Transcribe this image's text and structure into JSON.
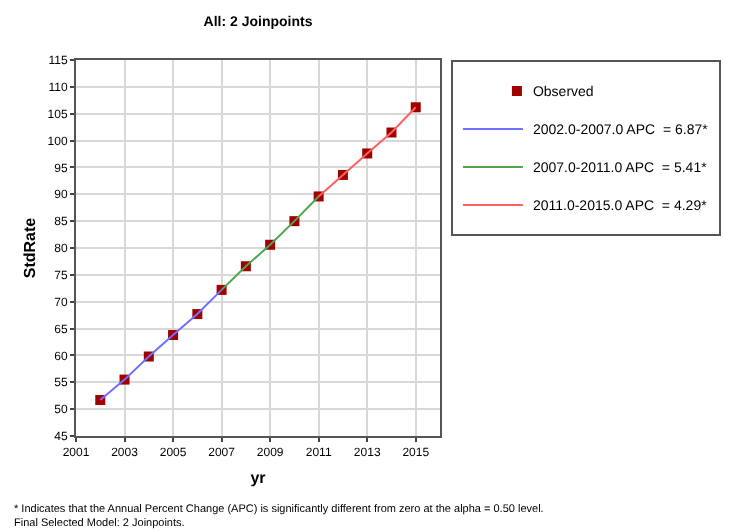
{
  "chart_data": {
    "type": "scatter",
    "title": "All: 2 Joinpoints",
    "xlabel": "yr",
    "ylabel": "StdRate",
    "x": [
      2002,
      2003,
      2004,
      2005,
      2006,
      2007,
      2008,
      2009,
      2010,
      2011,
      2012,
      2013,
      2014,
      2015
    ],
    "series": [
      {
        "name": "Observed",
        "type": "scatter",
        "marker": "square",
        "color": "#a00000",
        "values": [
          51.7,
          55.5,
          59.8,
          63.8,
          67.7,
          72.2,
          76.6,
          80.6,
          85.0,
          89.6,
          93.6,
          97.6,
          101.5,
          106.2
        ]
      },
      {
        "name": "2002.0-2007.0 APC  = 6.87*",
        "type": "line",
        "marker": "none",
        "line_style": "solid",
        "color": "#7070ff",
        "x": [
          2002,
          2003,
          2004,
          2005,
          2006,
          2007
        ],
        "values": [
          51.7,
          55.5,
          59.8,
          63.8,
          67.7,
          72.2
        ]
      },
      {
        "name": "2007.0-2011.0 APC  = 5.41*",
        "type": "line",
        "marker": "none",
        "line_style": "solid",
        "color": "#4da64d",
        "x": [
          2007,
          2008,
          2009,
          2010,
          2011
        ],
        "values": [
          72.2,
          76.6,
          80.6,
          85.0,
          89.6
        ]
      },
      {
        "name": "2011.0-2015.0 APC  = 4.29*",
        "type": "line",
        "marker": "none",
        "line_style": "solid",
        "color": "#ff6060",
        "x": [
          2011,
          2012,
          2013,
          2014,
          2015
        ],
        "values": [
          89.6,
          93.6,
          97.6,
          101.5,
          106.2
        ]
      }
    ],
    "xlim": [
      2001,
      2016
    ],
    "xticks": [
      2001,
      2003,
      2005,
      2007,
      2009,
      2011,
      2013,
      2015
    ],
    "ylim": [
      45,
      115
    ],
    "yticks": [
      45,
      50,
      55,
      60,
      65,
      70,
      75,
      80,
      85,
      90,
      95,
      100,
      105,
      110,
      115
    ],
    "grid": true,
    "legend": "top right",
    "annotations": [
      "* Indicates that the Annual Percent Change (APC) is significantly different from zero at the alpha = 0.50 level.",
      "Final Selected Model: 2 Joinpoints."
    ]
  }
}
